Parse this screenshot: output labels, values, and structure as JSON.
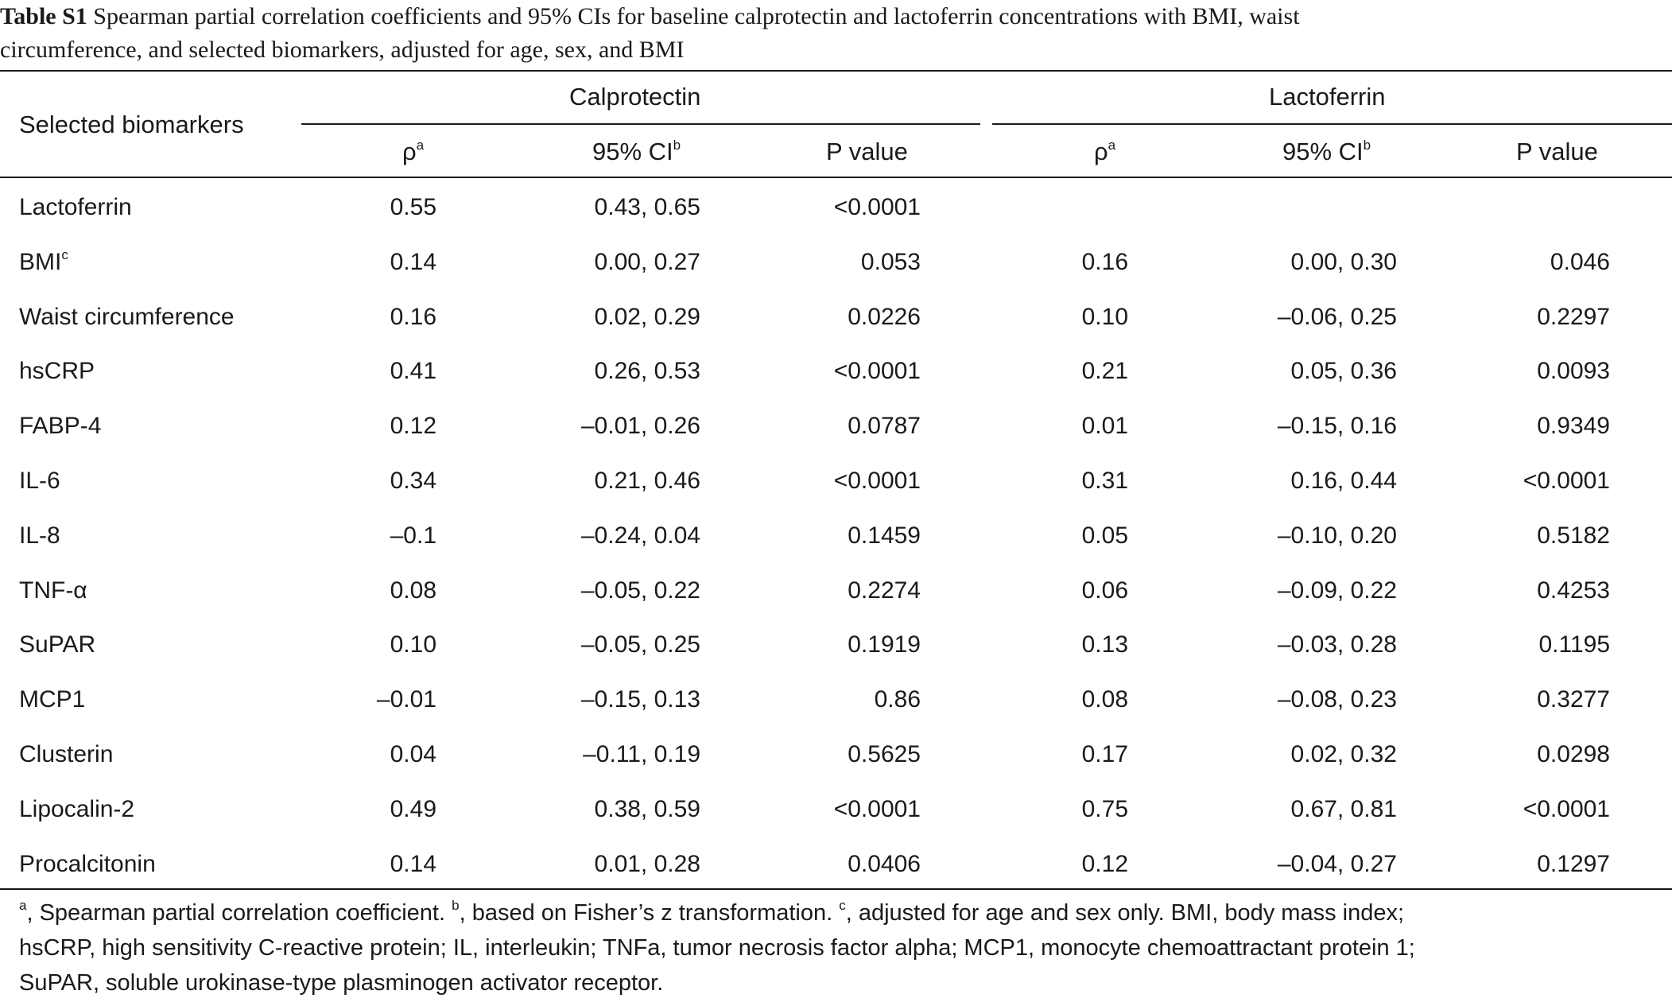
{
  "caption": {
    "label": "Table S1",
    "line1": "Spearman partial correlation coefficients and 95% CIs for baseline calprotectin and lactoferrin concentrations with BMI, waist",
    "line2": "circumference, and selected biomarkers, adjusted for age, sex, and BMI"
  },
  "header": {
    "row_label": "Selected biomarkers",
    "group1": "Calprotectin",
    "group2": "Lactoferrin",
    "rho": "ρ",
    "rho_sup": "a",
    "ci": "95% CI",
    "ci_sup": "b",
    "p": "P value"
  },
  "rows": [
    {
      "name": "Lactoferrin",
      "sup": "",
      "c_rho": "0.55",
      "c_ci": "0.43, 0.65",
      "c_p": "<0.0001",
      "l_rho": "",
      "l_ci": "",
      "l_p": ""
    },
    {
      "name": "BMI",
      "sup": "c",
      "c_rho": "0.14",
      "c_ci": "0.00, 0.27",
      "c_p": "0.053",
      "l_rho": "0.16",
      "l_ci": "0.00, 0.30",
      "l_p": "0.046"
    },
    {
      "name": "Waist circumference",
      "sup": "",
      "c_rho": "0.16",
      "c_ci": "0.02, 0.29",
      "c_p": "0.0226",
      "l_rho": "0.10",
      "l_ci": "–0.06, 0.25",
      "l_p": "0.2297"
    },
    {
      "name": "hsCRP",
      "sup": "",
      "c_rho": "0.41",
      "c_ci": "0.26, 0.53",
      "c_p": "<0.0001",
      "l_rho": "0.21",
      "l_ci": "0.05, 0.36",
      "l_p": "0.0093"
    },
    {
      "name": "FABP-4",
      "sup": "",
      "c_rho": "0.12",
      "c_ci": "–0.01, 0.26",
      "c_p": "0.0787",
      "l_rho": "0.01",
      "l_ci": "–0.15, 0.16",
      "l_p": "0.9349"
    },
    {
      "name": "IL-6",
      "sup": "",
      "c_rho": "0.34",
      "c_ci": "0.21, 0.46",
      "c_p": "<0.0001",
      "l_rho": "0.31",
      "l_ci": "0.16, 0.44",
      "l_p": "<0.0001"
    },
    {
      "name": "IL-8",
      "sup": "",
      "c_rho": "–0.1",
      "c_ci": "–0.24, 0.04",
      "c_p": "0.1459",
      "l_rho": "0.05",
      "l_ci": "–0.10, 0.20",
      "l_p": "0.5182"
    },
    {
      "name": "TNF-α",
      "sup": "",
      "c_rho": "0.08",
      "c_ci": "–0.05, 0.22",
      "c_p": "0.2274",
      "l_rho": "0.06",
      "l_ci": "–0.09, 0.22",
      "l_p": "0.4253"
    },
    {
      "name": "SuPAR",
      "sup": "",
      "c_rho": "0.10",
      "c_ci": "–0.05, 0.25",
      "c_p": "0.1919",
      "l_rho": "0.13",
      "l_ci": "–0.03, 0.28",
      "l_p": "0.1195"
    },
    {
      "name": "MCP1",
      "sup": "",
      "c_rho": "–0.01",
      "c_ci": "–0.15, 0.13",
      "c_p": "0.86",
      "l_rho": "0.08",
      "l_ci": "–0.08, 0.23",
      "l_p": "0.3277"
    },
    {
      "name": "Clusterin",
      "sup": "",
      "c_rho": "0.04",
      "c_ci": "–0.11, 0.19",
      "c_p": "0.5625",
      "l_rho": "0.17",
      "l_ci": "0.02, 0.32",
      "l_p": "0.0298"
    },
    {
      "name": "Lipocalin-2",
      "sup": "",
      "c_rho": "0.49",
      "c_ci": "0.38, 0.59",
      "c_p": "<0.0001",
      "l_rho": "0.75",
      "l_ci": "0.67, 0.81",
      "l_p": "<0.0001"
    },
    {
      "name": "Procalcitonin",
      "sup": "",
      "c_rho": "0.14",
      "c_ci": "0.01, 0.28",
      "c_p": "0.0406",
      "l_rho": "0.12",
      "l_ci": "–0.04, 0.27",
      "l_p": "0.1297"
    }
  ],
  "footnote": {
    "a_mark": "a",
    "a_text": ", Spearman partial correlation coefficient. ",
    "b_mark": "b",
    "b_text": ", based on Fisher’s z transformation. ",
    "c_mark": "c",
    "c_text": ", adjusted for age and sex only. BMI, body mass index;",
    "line2": "hsCRP, high sensitivity C-reactive protein; IL, interleukin; TNFa, tumor necrosis factor alpha; MCP1, monocyte chemoattractant protein 1;",
    "line3": "SuPAR, soluble urokinase-type plasminogen activator receptor."
  }
}
